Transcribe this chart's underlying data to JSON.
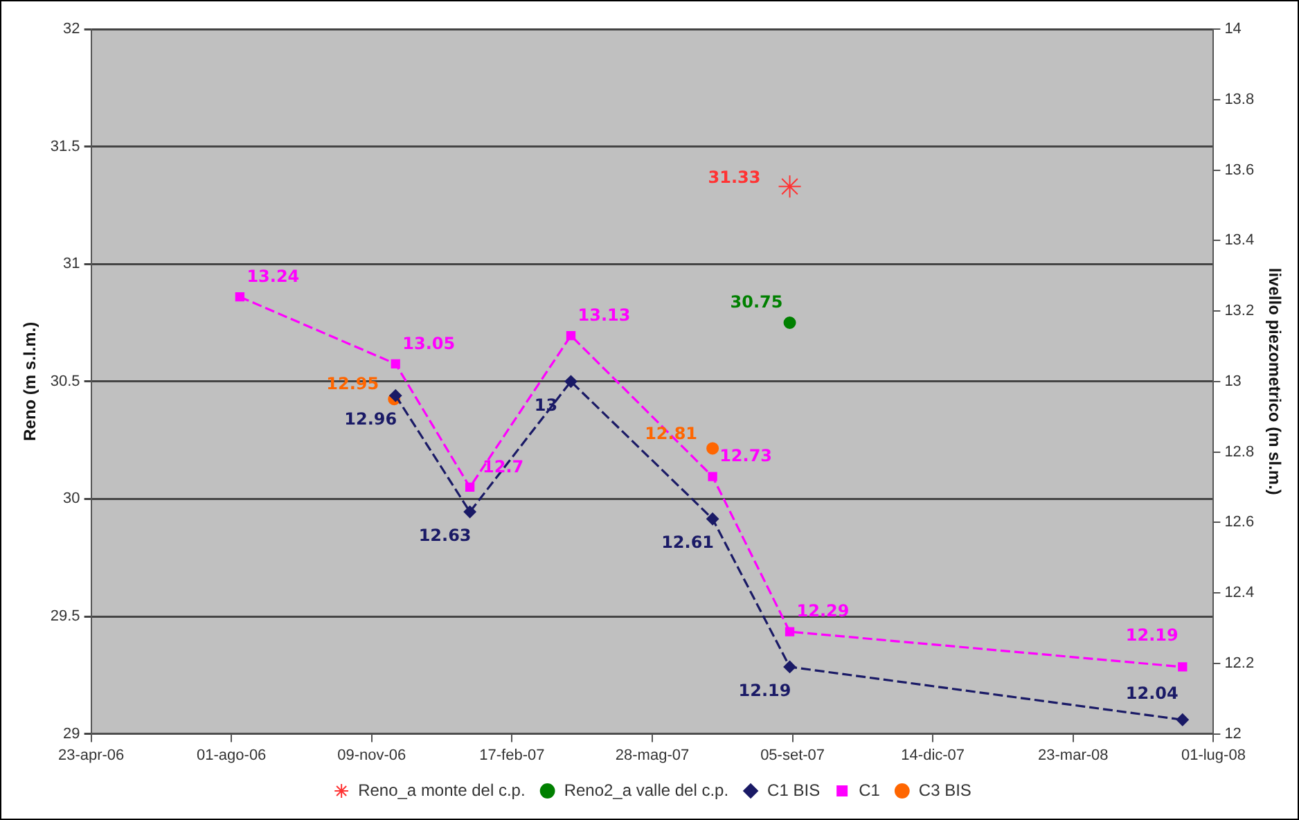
{
  "chart_data": {
    "type": "line",
    "ylabel": "Reno (m s.l.m.)",
    "y2label": "livello piezometrico (m sl.m.)",
    "xlim": [
      "2006-04-23",
      "2008-07-01"
    ],
    "xticks": [
      {
        "value": "2006-04-23",
        "label": "23-apr-06"
      },
      {
        "value": "2006-08-01",
        "label": "01-ago-06"
      },
      {
        "value": "2006-11-09",
        "label": "09-nov-06"
      },
      {
        "value": "2007-02-17",
        "label": "17-feb-07"
      },
      {
        "value": "2007-05-28",
        "label": "28-mag-07"
      },
      {
        "value": "2007-09-05",
        "label": "05-set-07"
      },
      {
        "value": "2007-12-14",
        "label": "14-dic-07"
      },
      {
        "value": "2008-03-23",
        "label": "23-mar-08"
      },
      {
        "value": "2008-07-01",
        "label": "01-lug-08"
      }
    ],
    "ylim": [
      29,
      32
    ],
    "yticks": [
      29,
      29.5,
      30,
      30.5,
      31,
      31.5,
      32
    ],
    "y2lim": [
      12,
      14
    ],
    "y2ticks": [
      12,
      12.2,
      12.4,
      12.6,
      12.8,
      13,
      13.2,
      13.4,
      13.6,
      13.8,
      14
    ],
    "grid": "y",
    "legend": "bottom",
    "data_labels": true,
    "series": [
      {
        "name": "Reno_a monte del c.p.",
        "type": "scatter",
        "marker": "cross",
        "color": "#ff3333",
        "x": [
          "2007-09-03"
        ],
        "values": [
          31.33
        ]
      },
      {
        "name": "Reno2_a valle del c.p.",
        "type": "scatter",
        "marker": "circle",
        "color": "#008000",
        "x": [
          "2007-09-03"
        ],
        "values": [
          30.75
        ]
      },
      {
        "name": "C1 BIS",
        "axis": "y2",
        "marker": "diamond",
        "line_style": "dashed",
        "color": "#1a1a66",
        "x": [
          "2006-11-26",
          "2007-01-18",
          "2007-03-31",
          "2007-07-10",
          "2007-09-03",
          "2008-06-09"
        ],
        "values": [
          12.96,
          12.63,
          13,
          12.61,
          12.19,
          12.04
        ]
      },
      {
        "name": "C1",
        "axis": "y2",
        "marker": "square",
        "line_style": "dashed",
        "color": "#ff00ff",
        "x": [
          "2006-08-07",
          "2006-11-26",
          "2007-01-18",
          "2007-03-31",
          "2007-07-10",
          "2007-09-03",
          "2008-06-09"
        ],
        "values": [
          13.24,
          13.05,
          12.7,
          13.13,
          12.73,
          12.29,
          12.19
        ]
      },
      {
        "name": "C3 BIS",
        "type": "scatter",
        "axis": "y2",
        "marker": "circle",
        "color": "#ff6600",
        "x": [
          "2006-11-25",
          "2007-07-10"
        ],
        "values": [
          12.95,
          12.81
        ]
      }
    ]
  }
}
